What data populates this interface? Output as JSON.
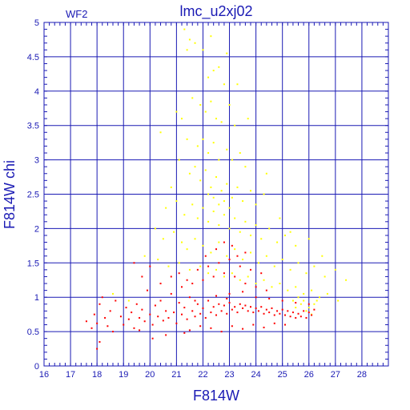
{
  "chart_data": {
    "type": "scatter",
    "title": "lmc_u2xj02",
    "panel_label": "WF2",
    "xlabel": "F814W",
    "ylabel": "F814W  chi",
    "xlim": [
      16,
      29
    ],
    "ylim": [
      0,
      5
    ],
    "xticks": [
      "16",
      "17",
      "18",
      "19",
      "20",
      "21",
      "22",
      "23",
      "24",
      "25",
      "26",
      "27",
      "28"
    ],
    "yticks": [
      "0",
      "0.5",
      "1",
      "1.5",
      "2",
      "2.5",
      "3",
      "3.5",
      "4",
      "4.5",
      "5"
    ],
    "grid": true,
    "colors": {
      "axes": "#1a1ab4",
      "grid": "#1a1ab4",
      "red": "#ff0000",
      "yellow": "#ffff00"
    },
    "series": [
      {
        "color": "yellow",
        "points": [
          [
            21.3,
            4.9
          ],
          [
            21.5,
            4.75
          ],
          [
            21.4,
            4.6
          ],
          [
            21.7,
            4.7
          ],
          [
            22.0,
            4.6
          ],
          [
            22.3,
            4.8
          ],
          [
            22.4,
            4.3
          ],
          [
            22.2,
            4.2
          ],
          [
            22.6,
            4.35
          ],
          [
            22.8,
            4.1
          ],
          [
            21.6,
            3.9
          ],
          [
            21.9,
            3.8
          ],
          [
            22.1,
            3.7
          ],
          [
            22.3,
            3.85
          ],
          [
            22.5,
            3.6
          ],
          [
            22.7,
            3.55
          ],
          [
            23.0,
            3.8
          ],
          [
            23.2,
            3.5
          ],
          [
            21.2,
            3.6
          ],
          [
            21.4,
            3.3
          ],
          [
            21.8,
            3.2
          ],
          [
            22.0,
            3.3
          ],
          [
            22.2,
            3.1
          ],
          [
            22.4,
            3.25
          ],
          [
            22.6,
            3.0
          ],
          [
            22.9,
            3.15
          ],
          [
            23.1,
            3.0
          ],
          [
            23.4,
            3.1
          ],
          [
            23.6,
            2.9
          ],
          [
            21.1,
            3.0
          ],
          [
            21.5,
            2.8
          ],
          [
            21.7,
            2.9
          ],
          [
            21.9,
            2.7
          ],
          [
            22.1,
            2.85
          ],
          [
            22.3,
            2.6
          ],
          [
            22.5,
            2.75
          ],
          [
            22.7,
            2.55
          ],
          [
            22.9,
            2.65
          ],
          [
            23.1,
            2.45
          ],
          [
            23.3,
            2.6
          ],
          [
            23.5,
            2.4
          ],
          [
            23.8,
            2.55
          ],
          [
            24.0,
            2.35
          ],
          [
            24.3,
            2.5
          ],
          [
            20.8,
            2.6
          ],
          [
            20.6,
            2.3
          ],
          [
            21.0,
            2.4
          ],
          [
            21.3,
            2.2
          ],
          [
            21.6,
            2.35
          ],
          [
            21.8,
            2.15
          ],
          [
            22.0,
            2.3
          ],
          [
            22.2,
            2.1
          ],
          [
            22.4,
            2.25
          ],
          [
            22.6,
            2.05
          ],
          [
            22.8,
            2.2
          ],
          [
            23.0,
            2.0
          ],
          [
            23.2,
            2.15
          ],
          [
            23.4,
            1.95
          ],
          [
            23.6,
            2.1
          ],
          [
            23.8,
            1.9
          ],
          [
            24.0,
            2.05
          ],
          [
            24.2,
            1.85
          ],
          [
            24.5,
            2.0
          ],
          [
            24.8,
            1.8
          ],
          [
            25.1,
            1.9
          ],
          [
            25.5,
            1.75
          ],
          [
            26.0,
            1.85
          ],
          [
            26.5,
            1.6
          ],
          [
            20.2,
            2.0
          ],
          [
            20.5,
            1.85
          ],
          [
            20.9,
            1.95
          ],
          [
            21.2,
            1.8
          ],
          [
            21.4,
            1.7
          ],
          [
            21.7,
            1.85
          ],
          [
            22.0,
            1.75
          ],
          [
            22.3,
            1.65
          ],
          [
            22.6,
            1.8
          ],
          [
            22.9,
            1.6
          ],
          [
            23.2,
            1.7
          ],
          [
            23.5,
            1.55
          ],
          [
            23.8,
            1.65
          ],
          [
            24.1,
            1.5
          ],
          [
            24.4,
            1.6
          ],
          [
            24.7,
            1.45
          ],
          [
            25.0,
            1.55
          ],
          [
            25.3,
            1.4
          ],
          [
            25.6,
            1.5
          ],
          [
            25.9,
            1.35
          ],
          [
            26.2,
            1.45
          ],
          [
            26.6,
            1.3
          ],
          [
            27.0,
            1.4
          ],
          [
            27.4,
            1.25
          ],
          [
            19.8,
            1.6
          ],
          [
            20.3,
            1.55
          ],
          [
            20.7,
            1.45
          ],
          [
            21.1,
            1.5
          ],
          [
            21.5,
            1.4
          ],
          [
            21.9,
            1.45
          ],
          [
            22.2,
            1.35
          ],
          [
            22.5,
            1.4
          ],
          [
            22.8,
            1.3
          ],
          [
            23.1,
            1.35
          ],
          [
            23.4,
            1.25
          ],
          [
            23.7,
            1.3
          ],
          [
            24.0,
            1.2
          ],
          [
            24.3,
            1.25
          ],
          [
            24.6,
            1.15
          ],
          [
            24.9,
            1.2
          ],
          [
            25.2,
            1.1
          ],
          [
            25.5,
            1.15
          ],
          [
            25.8,
            1.05
          ],
          [
            26.1,
            1.1
          ],
          [
            26.4,
            1.0
          ],
          [
            26.7,
            1.05
          ],
          [
            27.1,
            0.95
          ],
          [
            25.4,
            0.95
          ],
          [
            25.7,
            0.9
          ],
          [
            26.0,
            0.85
          ],
          [
            25.9,
            0.8
          ],
          [
            26.2,
            0.9
          ],
          [
            25.6,
            1.0
          ],
          [
            25.8,
            0.95
          ],
          [
            26.3,
            0.95
          ],
          [
            26.1,
            0.75
          ],
          [
            25.5,
            0.85
          ],
          [
            22.4,
            2.45
          ],
          [
            22.6,
            2.35
          ],
          [
            22.2,
            2.5
          ],
          [
            23.0,
            2.3
          ],
          [
            22.8,
            2.4
          ],
          [
            24.9,
            2.15
          ],
          [
            25.3,
            1.95
          ],
          [
            19.2,
            0.95
          ],
          [
            18.6,
            1.05
          ],
          [
            21.0,
            3.7
          ],
          [
            23.3,
            4.1
          ],
          [
            22.9,
            4.55
          ],
          [
            20.4,
            3.4
          ],
          [
            23.7,
            3.6
          ],
          [
            24.4,
            2.8
          ]
        ]
      },
      {
        "color": "red",
        "points": [
          [
            17.6,
            0.65
          ],
          [
            17.8,
            0.55
          ],
          [
            17.9,
            0.75
          ],
          [
            18.0,
            0.62
          ],
          [
            18.1,
            0.9
          ],
          [
            18.2,
            1.0
          ],
          [
            18.3,
            0.7
          ],
          [
            18.4,
            0.58
          ],
          [
            18.5,
            0.8
          ],
          [
            18.6,
            0.5
          ],
          [
            18.1,
            0.35
          ],
          [
            18.0,
            0.25
          ],
          [
            18.7,
            0.95
          ],
          [
            18.9,
            0.72
          ],
          [
            19.0,
            0.6
          ],
          [
            19.1,
            0.85
          ],
          [
            19.2,
            0.68
          ],
          [
            19.3,
            0.78
          ],
          [
            19.4,
            0.55
          ],
          [
            19.5,
            0.9
          ],
          [
            19.6,
            0.7
          ],
          [
            19.7,
            0.82
          ],
          [
            19.8,
            0.65
          ],
          [
            19.9,
            1.1
          ],
          [
            20.0,
            0.75
          ],
          [
            20.1,
            0.6
          ],
          [
            20.2,
            0.88
          ],
          [
            20.3,
            0.72
          ],
          [
            20.4,
            0.95
          ],
          [
            20.5,
            0.66
          ],
          [
            20.6,
            0.8
          ],
          [
            20.7,
            0.7
          ],
          [
            20.8,
            1.05
          ],
          [
            20.9,
            0.78
          ],
          [
            21.0,
            0.62
          ],
          [
            21.1,
            0.92
          ],
          [
            21.2,
            0.75
          ],
          [
            21.3,
            0.85
          ],
          [
            21.4,
            0.68
          ],
          [
            21.5,
            1.0
          ],
          [
            21.6,
            0.8
          ],
          [
            21.7,
            0.72
          ],
          [
            21.8,
            0.9
          ],
          [
            21.9,
            0.76
          ],
          [
            22.0,
            0.84
          ],
          [
            22.1,
            0.7
          ],
          [
            22.2,
            0.95
          ],
          [
            22.3,
            0.78
          ],
          [
            22.4,
            0.86
          ],
          [
            22.5,
            0.74
          ],
          [
            22.6,
            0.9
          ],
          [
            22.7,
            0.8
          ],
          [
            22.8,
            0.88
          ],
          [
            22.9,
            0.76
          ],
          [
            23.0,
            0.92
          ],
          [
            23.1,
            0.82
          ],
          [
            23.2,
            0.86
          ],
          [
            23.3,
            0.78
          ],
          [
            23.4,
            0.9
          ],
          [
            23.5,
            0.84
          ],
          [
            23.6,
            0.88
          ],
          [
            23.7,
            0.8
          ],
          [
            23.8,
            0.86
          ],
          [
            23.9,
            0.78
          ],
          [
            24.0,
            0.84
          ],
          [
            24.1,
            0.8
          ],
          [
            24.2,
            0.86
          ],
          [
            24.3,
            0.76
          ],
          [
            24.4,
            0.82
          ],
          [
            24.5,
            0.78
          ],
          [
            24.6,
            0.84
          ],
          [
            24.7,
            0.74
          ],
          [
            24.8,
            0.8
          ],
          [
            24.9,
            0.76
          ],
          [
            25.0,
            0.82
          ],
          [
            25.1,
            0.74
          ],
          [
            25.2,
            0.8
          ],
          [
            25.3,
            0.72
          ],
          [
            25.4,
            0.78
          ],
          [
            25.5,
            0.7
          ],
          [
            25.6,
            0.76
          ],
          [
            25.7,
            0.72
          ],
          [
            25.8,
            0.8
          ],
          [
            25.9,
            0.7
          ],
          [
            26.0,
            0.78
          ],
          [
            26.1,
            0.74
          ],
          [
            26.2,
            0.82
          ],
          [
            21.2,
            1.15
          ],
          [
            21.6,
            1.2
          ],
          [
            22.0,
            1.25
          ],
          [
            22.4,
            1.3
          ],
          [
            22.8,
            1.35
          ],
          [
            23.2,
            1.3
          ],
          [
            23.6,
            1.2
          ],
          [
            24.0,
            1.15
          ],
          [
            24.4,
            1.1
          ],
          [
            22.2,
            1.45
          ],
          [
            22.6,
            1.5
          ],
          [
            23.0,
            1.55
          ],
          [
            23.4,
            1.45
          ],
          [
            23.8,
            1.4
          ],
          [
            24.2,
            1.35
          ],
          [
            21.8,
            1.4
          ],
          [
            22.1,
            1.6
          ],
          [
            22.5,
            1.7
          ],
          [
            23.1,
            1.75
          ],
          [
            23.3,
            1.6
          ],
          [
            22.8,
            1.8
          ],
          [
            23.6,
            1.65
          ],
          [
            20.4,
            1.2
          ],
          [
            20.8,
            1.3
          ],
          [
            21.1,
            1.35
          ],
          [
            21.4,
            1.25
          ],
          [
            19.7,
            1.3
          ],
          [
            20.0,
            1.45
          ],
          [
            19.4,
            1.5
          ],
          [
            22.3,
            0.55
          ],
          [
            22.7,
            0.5
          ],
          [
            23.1,
            0.58
          ],
          [
            23.5,
            0.54
          ],
          [
            23.9,
            0.6
          ],
          [
            24.3,
            0.56
          ],
          [
            24.7,
            0.62
          ],
          [
            25.1,
            0.6
          ],
          [
            21.5,
            0.52
          ],
          [
            21.9,
            0.58
          ],
          [
            20.6,
            0.45
          ],
          [
            21.3,
            0.48
          ],
          [
            19.6,
            0.52
          ],
          [
            20.1,
            0.4
          ],
          [
            24.0,
            1.0
          ],
          [
            24.5,
            0.98
          ],
          [
            23.0,
            1.05
          ],
          [
            22.5,
            1.02
          ],
          [
            23.5,
            1.08
          ],
          [
            25.0,
            0.95
          ],
          [
            25.5,
            0.92
          ],
          [
            26.0,
            0.9
          ],
          [
            21.7,
            0.95
          ],
          [
            22.9,
            0.98
          ]
        ]
      }
    ]
  }
}
